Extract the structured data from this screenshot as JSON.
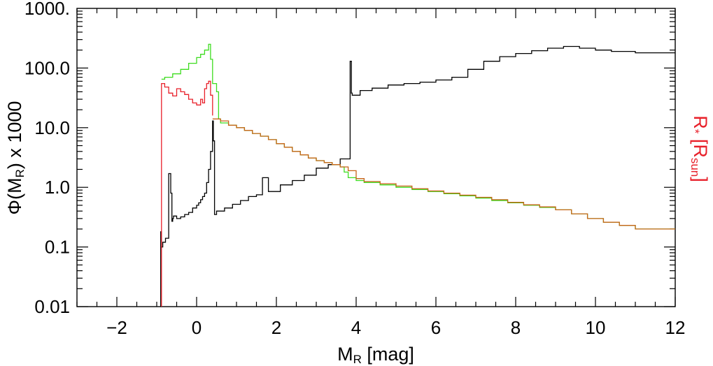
{
  "chart_data": {
    "type": "line",
    "step": true,
    "xlabel": {
      "main": "M",
      "sub": "R",
      "suffix": " [mag]"
    },
    "ylabel": {
      "prefix": "Φ(M",
      "sub": "R",
      "suffix": ") x 1000"
    },
    "y2label": {
      "main": "R",
      "sub1": "*",
      "mid": " [R",
      "sub2": "sun",
      "end": "]"
    },
    "xlim": [
      -3,
      12
    ],
    "ylim": [
      0.01,
      1000
    ],
    "yscale": "log",
    "xticks": [
      "−2",
      "0",
      "2",
      "4",
      "6",
      "8",
      "10",
      "12"
    ],
    "xtick_values": [
      -2,
      0,
      2,
      4,
      6,
      8,
      10,
      12
    ],
    "yticks": [
      "0.01",
      "0.1",
      "1.0",
      "10.0",
      "100.0",
      "1000."
    ],
    "ytick_values": [
      0.01,
      0.1,
      1,
      10,
      100,
      1000
    ],
    "grid": false,
    "colors": {
      "luminosity_function": "#000000",
      "radius_red": "#e8202a",
      "radius_green": "#3ddc1f",
      "radius_orange": "#c8641a",
      "right_label": "#e8202a"
    },
    "series": [
      {
        "id": "luminosity_function",
        "color": "#000000",
        "x": [
          -0.9,
          -0.88,
          -0.85,
          -0.78,
          -0.7,
          -0.65,
          -0.62,
          -0.6,
          -0.58,
          -0.5,
          -0.4,
          -0.3,
          -0.2,
          -0.1,
          0.0,
          0.05,
          0.1,
          0.15,
          0.2,
          0.25,
          0.3,
          0.35,
          0.4,
          0.42,
          0.45,
          0.5,
          0.7,
          0.9,
          1.1,
          1.3,
          1.5,
          1.65,
          1.8,
          2.1,
          2.4,
          2.7,
          3.0,
          3.3,
          3.6,
          3.85,
          3.88,
          3.9,
          4.1,
          4.4,
          4.8,
          5.2,
          5.6,
          6.0,
          6.4,
          6.8,
          7.2,
          7.6,
          8.0,
          8.4,
          8.8,
          9.2,
          9.6,
          10.0,
          10.4,
          11.0,
          12.0
        ],
        "y": [
          0.18,
          0.1,
          0.12,
          0.14,
          1.7,
          0.8,
          0.27,
          0.3,
          0.33,
          0.3,
          0.32,
          0.35,
          0.38,
          0.45,
          0.5,
          0.55,
          0.62,
          0.7,
          0.8,
          1.2,
          2.0,
          4.0,
          13.0,
          6.0,
          0.35,
          0.4,
          0.45,
          0.52,
          0.6,
          0.7,
          0.75,
          1.45,
          0.85,
          1.1,
          1.3,
          1.6,
          2.1,
          2.4,
          3.0,
          130.0,
          38.0,
          35.0,
          42.0,
          46.0,
          52.0,
          55.0,
          58.0,
          63.0,
          70.0,
          95.0,
          130.0,
          155.0,
          175.0,
          195.0,
          215.0,
          230.0,
          215.0,
          200.0,
          190.0,
          180.0,
          180.0
        ]
      },
      {
        "id": "radius_green",
        "color": "#3ddc1f",
        "x": [
          -0.88,
          -0.8,
          -0.6,
          -0.4,
          -0.2,
          0.0,
          0.1,
          0.2,
          0.3,
          0.35,
          0.4,
          0.5,
          0.55,
          0.6,
          0.8,
          1.0,
          1.2,
          1.4,
          1.6,
          1.8,
          2.0,
          2.2,
          2.4,
          2.6,
          2.8,
          3.0,
          3.2,
          3.4,
          3.6,
          3.7,
          3.8,
          4.0,
          4.2,
          4.6,
          5.0,
          5.4,
          5.8,
          6.2,
          6.6,
          7.0,
          7.4,
          7.8,
          8.2,
          8.6,
          9.0,
          9.4,
          9.8,
          10.2,
          10.6,
          11.0,
          12.0
        ],
        "y": [
          65,
          70,
          80,
          95,
          120,
          150,
          170,
          200,
          250,
          140,
          55,
          40,
          14,
          12,
          11,
          10,
          9,
          8,
          7.2,
          6.3,
          5.4,
          4.7,
          4.0,
          3.5,
          3.1,
          2.8,
          2.6,
          2.4,
          2.2,
          1.8,
          1.45,
          1.3,
          1.2,
          1.1,
          1.0,
          0.92,
          0.85,
          0.78,
          0.72,
          0.66,
          0.6,
          0.55,
          0.5,
          0.46,
          0.42,
          0.36,
          0.3,
          0.26,
          0.23,
          0.2,
          0.2
        ]
      },
      {
        "id": "radius_red",
        "color": "#e8202a",
        "x": [
          -0.88,
          -0.8,
          -0.7,
          -0.6,
          -0.5,
          -0.4,
          -0.3,
          -0.2,
          -0.1,
          0.0,
          0.1,
          0.15,
          0.2,
          0.25,
          0.3,
          0.35,
          0.4
        ],
        "y": [
          55,
          48,
          38,
          34,
          45,
          40,
          36,
          30,
          26,
          24,
          30,
          26,
          45,
          55,
          60,
          35,
          16
        ]
      },
      {
        "id": "radius_orange",
        "color": "#c8641a",
        "x": [
          0.4,
          0.6,
          0.8,
          1.0,
          1.2,
          1.4,
          1.6,
          1.8,
          2.0,
          2.2,
          2.4,
          2.6,
          2.8,
          3.0,
          3.2,
          3.4,
          3.6,
          3.8,
          4.0,
          4.2,
          4.6,
          5.0,
          5.4,
          5.8,
          6.2,
          6.6,
          7.0,
          7.4,
          7.8,
          8.2,
          8.6,
          9.0,
          9.4,
          9.8,
          10.2,
          10.6,
          11.0,
          12.0
        ],
        "y": [
          14,
          13,
          11,
          10,
          9,
          8,
          7.2,
          6.3,
          5.4,
          4.7,
          4.0,
          3.5,
          3.1,
          2.8,
          2.6,
          2.4,
          2.2,
          1.9,
          1.4,
          1.25,
          1.15,
          1.05,
          0.95,
          0.87,
          0.8,
          0.74,
          0.68,
          0.62,
          0.56,
          0.51,
          0.47,
          0.42,
          0.36,
          0.3,
          0.26,
          0.23,
          0.2,
          0.2
        ]
      }
    ]
  }
}
